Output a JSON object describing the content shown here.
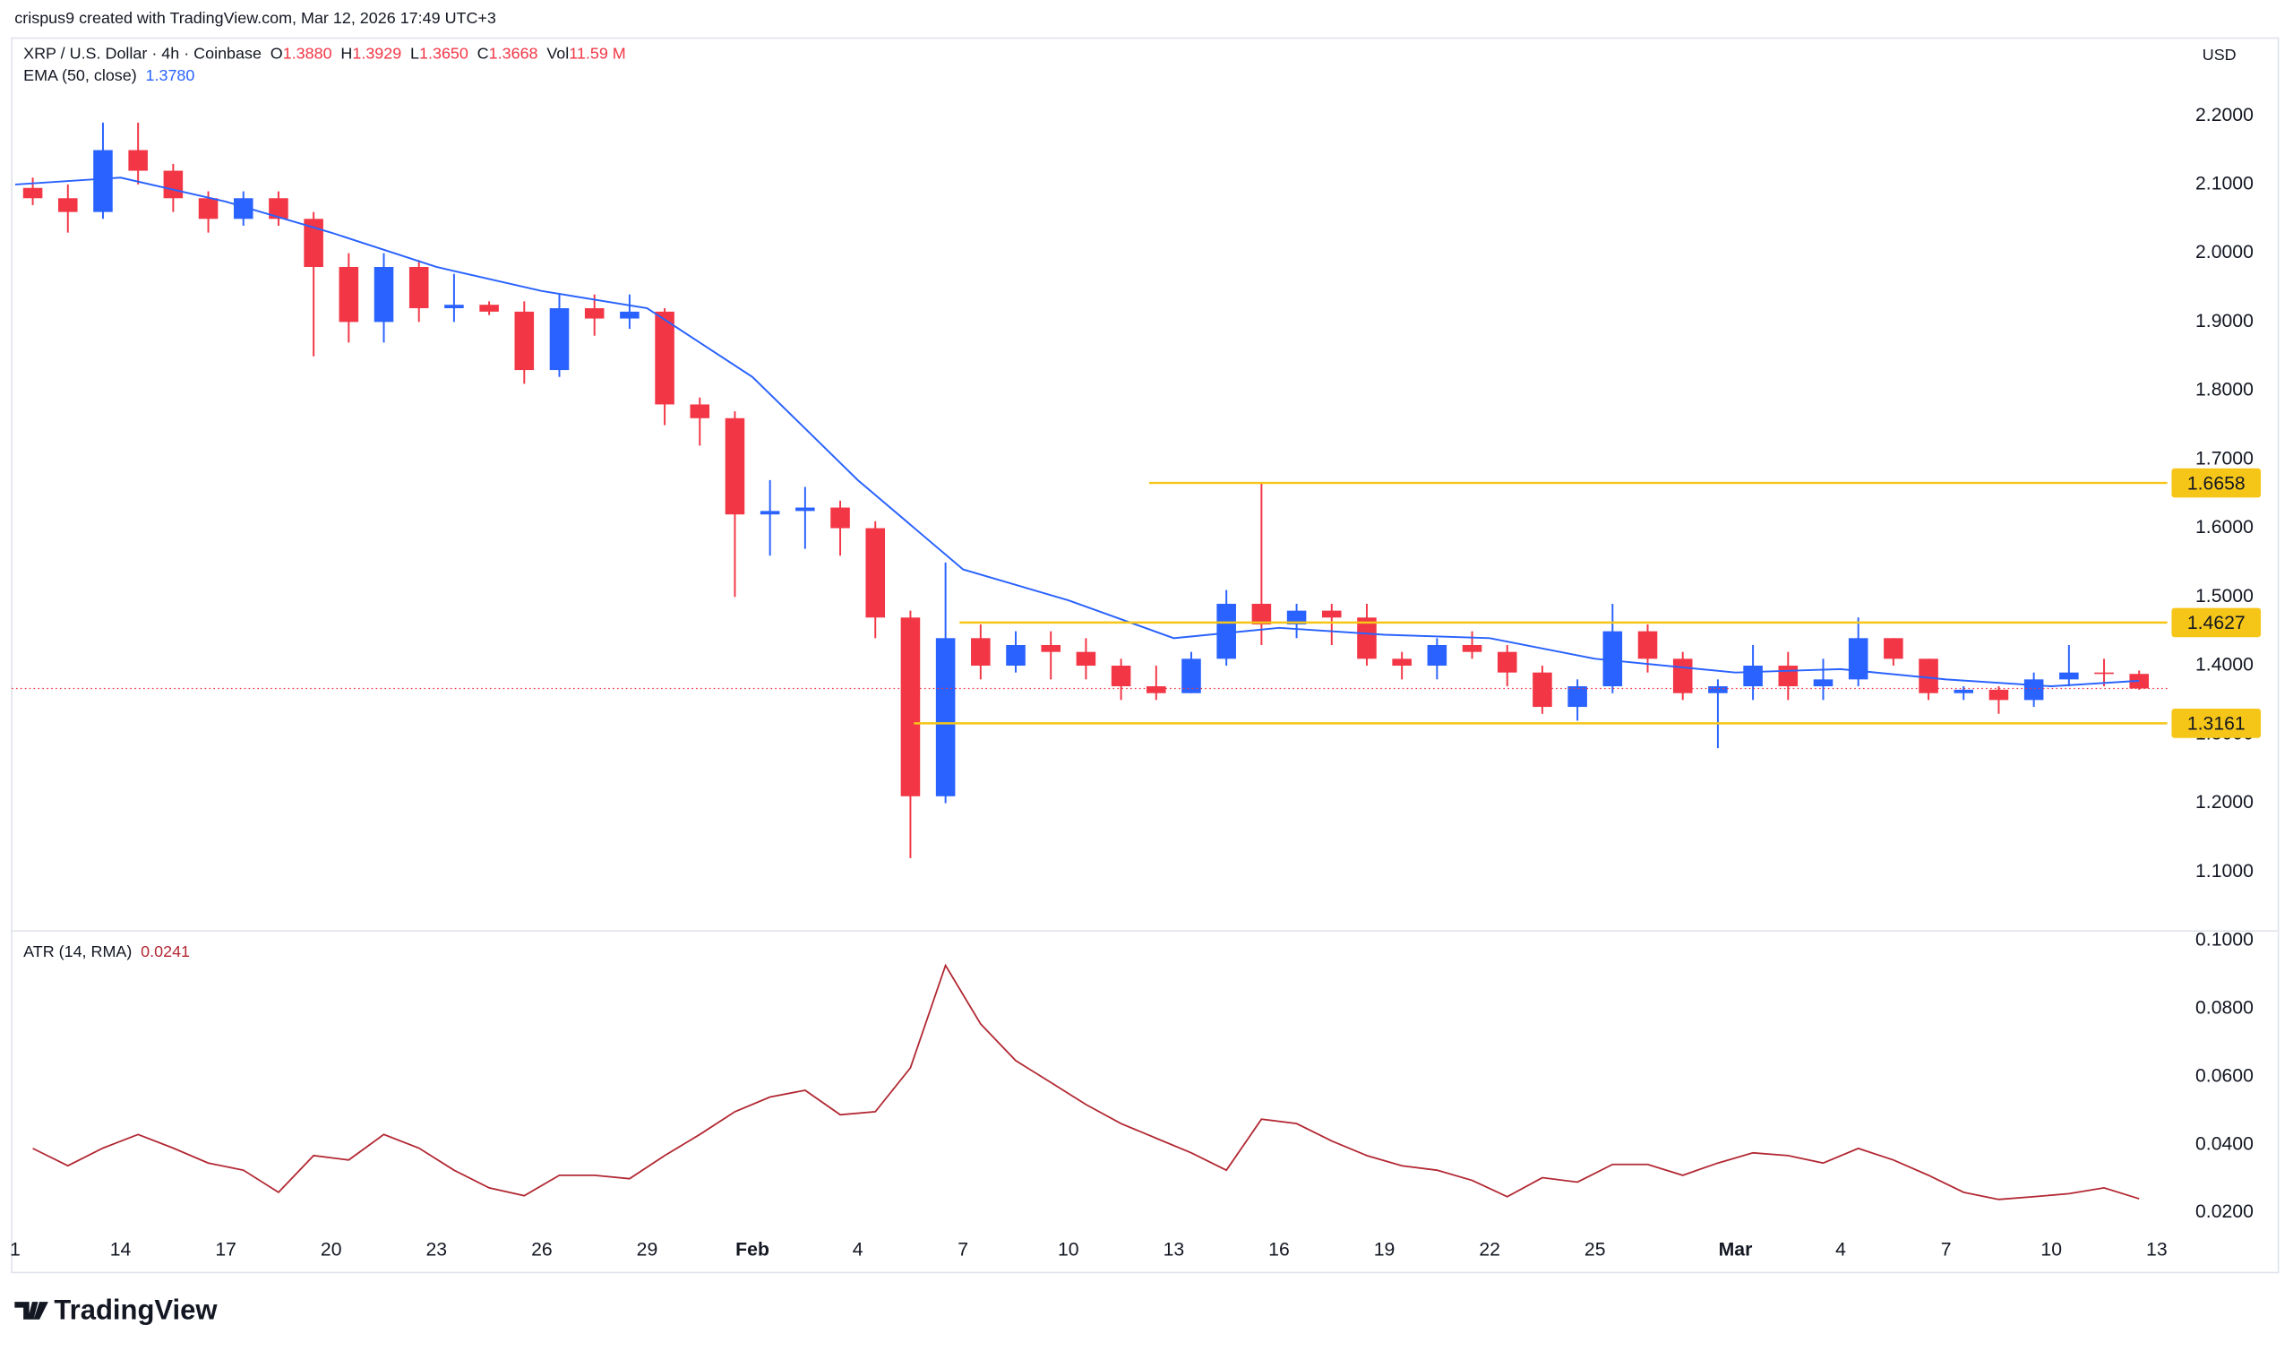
{
  "header": {
    "attribution": "crispus9 created with TradingView.com, Mar 12, 2026 17:49 UTC+3",
    "logo": "TradingView"
  },
  "chart_data": [
    {
      "type": "candlestick",
      "title": "XRP / U.S. Dollar · 4h · Coinbase",
      "currency": "USD",
      "legend": [
        {
          "label": "O",
          "value": "1.3880"
        },
        {
          "label": "H",
          "value": "1.3929"
        },
        {
          "label": "L",
          "value": "1.3650"
        },
        {
          "label": "C",
          "value": "1.3668"
        },
        {
          "label": "Vol",
          "value": "11.59 M"
        }
      ],
      "up_color": "#2962ff",
      "down_color": "#f23645",
      "x": [
        11.5,
        12.5,
        13.5,
        14.5,
        15.5,
        16.5,
        17.5,
        18.5,
        19.5,
        20.5,
        21.5,
        22.5,
        23.5,
        24.5,
        25.5,
        26.5,
        27.5,
        28.5,
        29.5,
        30.5,
        31.5,
        32.5,
        33.5,
        34.5,
        35.5,
        36.5,
        37.5,
        38.5,
        39.5,
        40.5,
        41.5,
        42.5,
        43.5,
        44.5,
        45.5,
        46.5,
        47.5,
        48.5,
        49.5,
        50.5,
        51.5,
        52.5,
        53.5,
        54.5,
        55.5,
        56.5,
        57.5,
        58.5,
        59.5,
        60.5,
        61.5,
        62.5,
        63.5,
        64.5,
        65.5,
        66.5,
        67.5,
        68.5,
        69.5,
        70.5,
        71.5
      ],
      "open": [
        2.095,
        2.08,
        2.06,
        2.15,
        2.12,
        2.08,
        2.05,
        2.08,
        2.05,
        1.98,
        1.9,
        1.98,
        1.92,
        1.925,
        1.915,
        1.83,
        1.92,
        1.905,
        1.915,
        1.78,
        1.76,
        1.62,
        1.625,
        1.63,
        1.6,
        1.47,
        1.21,
        1.44,
        1.4,
        1.43,
        1.42,
        1.4,
        1.37,
        1.36,
        1.41,
        1.49,
        1.46,
        1.48,
        1.47,
        1.41,
        1.4,
        1.43,
        1.42,
        1.39,
        1.34,
        1.37,
        1.45,
        1.41,
        1.36,
        1.37,
        1.4,
        1.37,
        1.38,
        1.44,
        1.41,
        1.36,
        1.365,
        1.35,
        1.38,
        1.39,
        1.388
      ],
      "high": [
        2.11,
        2.1,
        2.19,
        2.19,
        2.13,
        2.09,
        2.09,
        2.09,
        2.06,
        2.0,
        2.0,
        1.99,
        1.97,
        1.93,
        1.93,
        1.94,
        1.94,
        1.94,
        1.92,
        1.79,
        1.77,
        1.67,
        1.66,
        1.64,
        1.61,
        1.48,
        1.55,
        1.46,
        1.45,
        1.45,
        1.44,
        1.41,
        1.4,
        1.42,
        1.51,
        1.6658,
        1.49,
        1.49,
        1.49,
        1.42,
        1.44,
        1.45,
        1.43,
        1.4,
        1.38,
        1.49,
        1.46,
        1.42,
        1.38,
        1.43,
        1.42,
        1.41,
        1.47,
        1.44,
        1.41,
        1.37,
        1.37,
        1.39,
        1.43,
        1.41,
        1.3929
      ],
      "low": [
        2.07,
        2.03,
        2.05,
        2.1,
        2.06,
        2.03,
        2.04,
        2.04,
        1.85,
        1.87,
        1.87,
        1.9,
        1.9,
        1.91,
        1.81,
        1.82,
        1.88,
        1.89,
        1.75,
        1.72,
        1.5,
        1.56,
        1.57,
        1.56,
        1.44,
        1.12,
        1.2,
        1.38,
        1.39,
        1.38,
        1.38,
        1.35,
        1.35,
        1.36,
        1.4,
        1.43,
        1.44,
        1.43,
        1.4,
        1.38,
        1.38,
        1.41,
        1.37,
        1.33,
        1.32,
        1.36,
        1.39,
        1.35,
        1.28,
        1.35,
        1.35,
        1.35,
        1.37,
        1.4,
        1.35,
        1.35,
        1.33,
        1.34,
        1.37,
        1.37,
        1.365
      ],
      "close": [
        2.08,
        2.06,
        2.15,
        2.12,
        2.08,
        2.05,
        2.08,
        2.05,
        1.98,
        1.9,
        1.98,
        1.92,
        1.925,
        1.915,
        1.83,
        1.92,
        1.905,
        1.915,
        1.78,
        1.76,
        1.62,
        1.625,
        1.63,
        1.6,
        1.47,
        1.21,
        1.44,
        1.4,
        1.43,
        1.42,
        1.4,
        1.37,
        1.36,
        1.41,
        1.49,
        1.46,
        1.48,
        1.47,
        1.41,
        1.4,
        1.43,
        1.42,
        1.39,
        1.34,
        1.37,
        1.45,
        1.41,
        1.36,
        1.37,
        1.4,
        1.37,
        1.38,
        1.44,
        1.41,
        1.36,
        1.365,
        1.35,
        1.38,
        1.39,
        1.388,
        1.3668
      ],
      "xlim": [
        10.9,
        72.3
      ],
      "ylim": [
        1.015,
        2.313
      ],
      "yticks": [
        {
          "value": 1.1,
          "label": "1.1000"
        },
        {
          "value": 1.2,
          "label": "1.2000"
        },
        {
          "value": 1.3,
          "label": "1.3000"
        },
        {
          "value": 1.4,
          "label": "1.4000"
        },
        {
          "value": 1.5,
          "label": "1.5000"
        },
        {
          "value": 1.6,
          "label": "1.6000"
        },
        {
          "value": 1.7,
          "label": "1.7000"
        },
        {
          "value": 1.8,
          "label": "1.8000"
        },
        {
          "value": 1.9,
          "label": "1.9000"
        },
        {
          "value": 2.0,
          "label": "2.0000"
        },
        {
          "value": 2.1,
          "label": "2.1000"
        },
        {
          "value": 2.2,
          "label": "2.2000"
        }
      ],
      "ema": {
        "name": "EMA (50, close)",
        "value_label": "1.3780",
        "color": "#2962ff",
        "x": [
          11,
          14,
          17,
          20,
          23,
          26,
          29,
          32,
          35,
          38,
          41,
          44,
          47,
          50,
          53,
          56,
          60,
          63,
          66,
          69,
          71.5
        ],
        "values": [
          2.1,
          2.11,
          2.075,
          2.03,
          1.98,
          1.945,
          1.92,
          1.82,
          1.67,
          1.54,
          1.495,
          1.44,
          1.455,
          1.445,
          1.44,
          1.41,
          1.39,
          1.395,
          1.38,
          1.37,
          1.378
        ]
      },
      "levels": [
        {
          "value": 1.6658,
          "x_start": 43.3
        },
        {
          "value": 1.4627,
          "x_start": 37.9
        },
        {
          "value": 1.3161,
          "x_start": 36.6
        }
      ],
      "level_color": "#f5c518",
      "last_price_color": "#f23645"
    },
    {
      "type": "line",
      "name": "ATR (14, RMA)",
      "color": "#b22833",
      "x": [
        11.5,
        12.5,
        13.5,
        14.5,
        15.5,
        16.5,
        17.5,
        18.5,
        19.5,
        20.5,
        21.5,
        22.5,
        23.5,
        24.5,
        25.5,
        26.5,
        27.5,
        28.5,
        29.5,
        30.5,
        31.5,
        32.5,
        33.5,
        34.5,
        35.5,
        36.5,
        37.5,
        38.5,
        39.5,
        40.5,
        41.5,
        42.5,
        43.5,
        44.5,
        45.5,
        46.5,
        47.5,
        48.5,
        49.5,
        50.5,
        51.5,
        52.5,
        53.5,
        54.5,
        55.5,
        56.5,
        57.5,
        58.5,
        59.5,
        60.5,
        61.5,
        62.5,
        63.5,
        64.5,
        65.5,
        66.5,
        67.5,
        68.5,
        69.5,
        70.5,
        71.5
      ],
      "values": [
        0.0389,
        0.0338,
        0.039,
        0.043,
        0.039,
        0.0346,
        0.0325,
        0.026,
        0.0368,
        0.0355,
        0.043,
        0.039,
        0.0325,
        0.0273,
        0.025,
        0.031,
        0.031,
        0.03,
        0.0368,
        0.043,
        0.0497,
        0.054,
        0.056,
        0.0488,
        0.0497,
        0.0626,
        0.0927,
        0.0755,
        0.0647,
        0.0583,
        0.0518,
        0.0462,
        0.0419,
        0.0376,
        0.0325,
        0.0475,
        0.0462,
        0.0411,
        0.0368,
        0.0338,
        0.0325,
        0.0295,
        0.0247,
        0.0303,
        0.029,
        0.0342,
        0.0342,
        0.031,
        0.0346,
        0.0376,
        0.0368,
        0.0346,
        0.0389,
        0.0355,
        0.031,
        0.026,
        0.0239,
        0.0247,
        0.0256,
        0.0273,
        0.0241
      ],
      "xlim": [
        10.9,
        72.3
      ],
      "ylim": [
        0.0024,
        0.1026
      ],
      "yticks": [
        {
          "value": 0.02,
          "label": "0.0200"
        },
        {
          "value": 0.04,
          "label": "0.0400"
        },
        {
          "value": 0.06,
          "label": "0.0600"
        },
        {
          "value": 0.08,
          "label": "0.0800"
        },
        {
          "value": 0.1,
          "label": "0.1000"
        }
      ],
      "xticks": [
        {
          "value": 11,
          "label": "1"
        },
        14,
        17,
        20,
        23,
        26,
        29,
        {
          "value": 32,
          "label": "Feb"
        },
        {
          "value": 35,
          "label": "4"
        },
        {
          "value": 38,
          "label": "7"
        },
        {
          "value": 41,
          "label": "10"
        },
        {
          "value": 44,
          "label": "13"
        },
        {
          "value": 47,
          "label": "16"
        },
        {
          "value": 50,
          "label": "19"
        },
        {
          "value": 53,
          "label": "22"
        },
        {
          "value": 56,
          "label": "25"
        },
        {
          "value": 60,
          "label": "Mar"
        },
        {
          "value": 63,
          "label": "4"
        },
        {
          "value": 66,
          "label": "7"
        },
        {
          "value": 69,
          "label": "10"
        },
        {
          "value": 72,
          "label": "13"
        }
      ]
    }
  ]
}
